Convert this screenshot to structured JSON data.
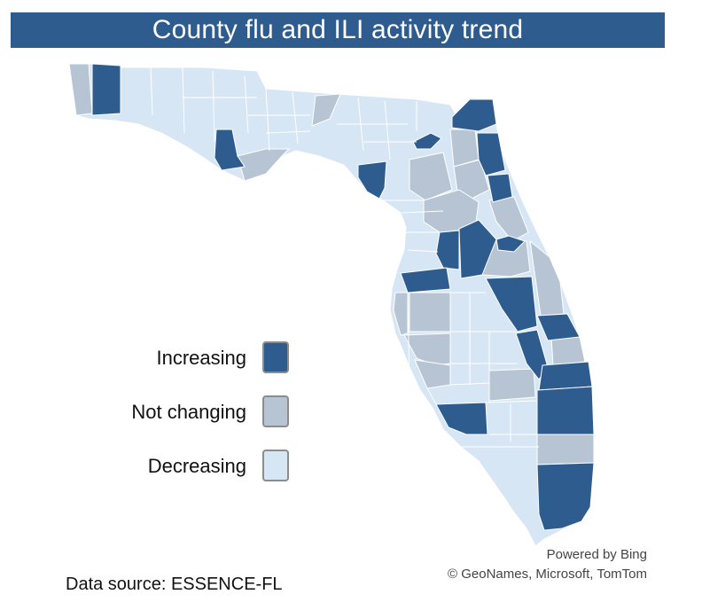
{
  "title": "County flu and ILI activity trend",
  "colors": {
    "increasing": "#2f5c8f",
    "not_changing": "#b7c4d3",
    "decreasing": "#d7e6f4",
    "county_border": "#ffffff",
    "title_background": "#2f5c8f"
  },
  "legend": {
    "items": [
      {
        "label": "Increasing",
        "category": "increasing"
      },
      {
        "label": "Not changing",
        "category": "not_changing"
      },
      {
        "label": "Decreasing",
        "category": "decreasing"
      }
    ]
  },
  "credits": {
    "powered_by": "Powered by Bing",
    "copyright": "© GeoNames, Microsoft, TomTom"
  },
  "source": "Data source: ESSENCE-FL"
}
